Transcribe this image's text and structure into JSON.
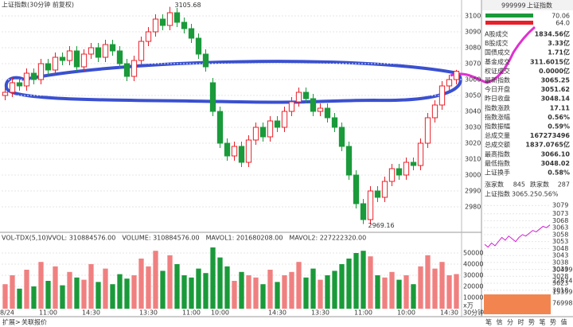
{
  "chart_data": {
    "type": "candlestick",
    "title": "上证指数(30分钟 前复权)",
    "period": "30分钟",
    "up_color": "#e8202a",
    "down_color": "#1a9a3a",
    "categories": [
      "08/24",
      null,
      null,
      null,
      null,
      null,
      "11:00",
      null,
      null,
      null,
      null,
      null,
      "14:30",
      null,
      null,
      null,
      null,
      null,
      null,
      null,
      "13:30",
      null,
      null,
      null,
      null,
      null,
      "11:00",
      null,
      null,
      null,
      "10:00",
      null,
      null,
      null,
      null,
      null,
      null,
      null,
      "14:30",
      null,
      null,
      null,
      null,
      null,
      "13:30",
      null,
      null,
      null,
      null,
      null,
      "11:00",
      null,
      null,
      null,
      null,
      null,
      "10:00",
      null,
      null,
      null,
      null,
      null,
      "14:30",
      null
    ],
    "open": [
      3050,
      3052,
      3058,
      3056,
      3064,
      3060,
      3070,
      3066,
      3074,
      3072,
      3078,
      3068,
      3076,
      3080,
      3074,
      3082,
      3078,
      3070,
      3062,
      3072,
      3084,
      3090,
      3098,
      3094,
      3102,
      3096,
      3092,
      3086,
      3076,
      3058,
      3040,
      3020,
      3012,
      3018,
      3008,
      3022,
      3030,
      3024,
      3034,
      3030,
      3040,
      3046,
      3052,
      3048,
      3040,
      3042,
      3036,
      3030,
      3018,
      3000,
      2982,
      2972,
      2990,
      2986,
      2996,
      3004,
      3000,
      3008,
      3006,
      3020,
      3036,
      3044,
      3056,
      3060
    ],
    "high": [
      3055,
      3061,
      3061,
      3067,
      3067,
      3073,
      3073,
      3077,
      3077,
      3081,
      3081,
      3079,
      3083,
      3083,
      3085,
      3085,
      3081,
      3073,
      3075,
      3087,
      3093,
      3101,
      3101,
      3105.68,
      3105,
      3099,
      3095,
      3089,
      3079,
      3061,
      3043,
      3023,
      3021,
      3021,
      3025,
      3033,
      3033,
      3037,
      3037,
      3043,
      3049,
      3055,
      3055,
      3051,
      3045,
      3045,
      3039,
      3033,
      3021,
      3003,
      2985,
      2993,
      2993,
      2999,
      3007,
      3007,
      3011,
      3011,
      3023,
      3039,
      3047,
      3059,
      3063,
      3066.1
    ],
    "low": [
      3047,
      3049,
      3053,
      3053,
      3057,
      3057,
      3063,
      3063,
      3069,
      3069,
      3065,
      3065,
      3073,
      3071,
      3071,
      3075,
      3067,
      3059,
      3059,
      3069,
      3081,
      3087,
      3091,
      3091,
      3093,
      3089,
      3083,
      3073,
      3065,
      3037,
      3017,
      3009,
      3009,
      3005,
      3005,
      3019,
      3021,
      3021,
      3027,
      3027,
      3037,
      3043,
      3045,
      3037,
      3037,
      3033,
      3027,
      3015,
      2997,
      2979,
      2969.16,
      2969,
      2983,
      2983,
      2993,
      2997,
      2997,
      3003,
      3003,
      3017,
      3033,
      3041,
      3053,
      3057
    ],
    "close": [
      3052,
      3058,
      3056,
      3064,
      3060,
      3070,
      3066,
      3074,
      3072,
      3078,
      3068,
      3076,
      3080,
      3074,
      3082,
      3078,
      3070,
      3062,
      3072,
      3084,
      3090,
      3098,
      3094,
      3102,
      3096,
      3092,
      3086,
      3076,
      3068,
      3040,
      3020,
      3012,
      3018,
      3008,
      3022,
      3030,
      3024,
      3034,
      3030,
      3040,
      3046,
      3052,
      3048,
      3040,
      3042,
      3036,
      3030,
      3018,
      3000,
      2982,
      2972,
      2990,
      2986,
      2996,
      3004,
      3000,
      3008,
      3006,
      3020,
      3036,
      3044,
      3056,
      3060,
      3065.25
    ],
    "ylim": [
      2966,
      3106
    ],
    "yticks": [
      3100,
      3090,
      3080,
      3070,
      3060,
      3050,
      3040,
      3030,
      3020,
      3010,
      3000,
      2990,
      2980
    ],
    "annotations": [
      {
        "text": "3105.68",
        "index": 23,
        "value": 3105.68
      },
      {
        "text": "2969.16",
        "index": 50,
        "value": 2969.16
      }
    ],
    "volume": {
      "title": "VOL-TDX(5,10)",
      "legend": [
        "VVOL: 310884576.00",
        "VOLUME: 310884576.00",
        "MAVOL1: 201680208.00",
        "MAVOL2: 227222320.00"
      ],
      "legend_colors": [
        "#333",
        "#d020d0",
        "#e8202a",
        "#888"
      ],
      "unit": "x万",
      "values": [
        22000,
        30000,
        18000,
        35000,
        20000,
        42000,
        25000,
        38000,
        21000,
        33000,
        28000,
        26000,
        40000,
        24000,
        36000,
        22000,
        31000,
        27000,
        30000,
        45000,
        38000,
        52000,
        34000,
        48000,
        40000,
        30000,
        28000,
        36000,
        32000,
        55000,
        46000,
        38000,
        25000,
        33000,
        30000,
        28000,
        22000,
        35000,
        24000,
        30000,
        33000,
        42000,
        28000,
        36000,
        26000,
        30000,
        34000,
        40000,
        45000,
        50000,
        52000,
        47000,
        30000,
        28000,
        33000,
        26000,
        30000,
        22000,
        38000,
        48000,
        36000,
        42000,
        30000,
        31088
      ],
      "ylim": [
        0,
        60000
      ],
      "yticks": [
        50000,
        40000,
        30000,
        20000,
        10000
      ]
    }
  },
  "quote_panel": {
    "code": "999999",
    "name": "上证指数",
    "top_values": [
      "70.06",
      "64.0"
    ],
    "rows": [
      {
        "label": "A股成交",
        "value": "1834.56亿",
        "color": "#e8202a"
      },
      {
        "label": "B股成交",
        "value": "3.33亿",
        "color": "#e8202a"
      },
      {
        "label": "国债成交",
        "value": "1.71亿",
        "color": "#e8202a"
      },
      {
        "label": "基金成交",
        "value": "311.6015亿",
        "color": "#e8202a"
      },
      {
        "label": "权证成交",
        "value": "0.0000亿",
        "color": "#e8202a"
      },
      {
        "label": "最新指数",
        "value": "3065.25",
        "color": "#e8202a"
      },
      {
        "label": "今日开盘",
        "value": "3051.62",
        "color": "#e8202a"
      },
      {
        "label": "昨日收盘",
        "value": "3048.14",
        "color": "#000"
      },
      {
        "label": "指数涨跌",
        "value": "17.11",
        "color": "#e8202a"
      },
      {
        "label": "指数涨幅",
        "value": "0.56%",
        "color": "#e8202a"
      },
      {
        "label": "指数振幅",
        "value": "0.59%",
        "color": "#000"
      },
      {
        "label": "总成交量",
        "value": "167273496",
        "color": "#e8202a"
      },
      {
        "label": "总成交额",
        "value": "1837.0765亿",
        "color": "#e8202a"
      },
      {
        "label": "最高指数",
        "value": "3066.10",
        "color": "#e8202a"
      },
      {
        "label": "最低指数",
        "value": "3048.02",
        "color": "#000"
      },
      {
        "label": "上证换手",
        "value": "0.58%",
        "color": "#000"
      }
    ],
    "advance_label": "涨家数",
    "advance": 845,
    "decline_label": "跌家数",
    "decline": 287,
    "mini_title": "上证指数",
    "mini_price": "3065.25",
    "mini_change": "0.56%",
    "mini_ticks": [
      3079,
      3073,
      3068,
      3063,
      3058,
      3053,
      3048,
      3043,
      3038,
      3033,
      3028,
      3023,
      3018
    ],
    "mini_ylim": [
      3015,
      3082
    ],
    "mini_line": [
      3051,
      3049,
      3052,
      3050,
      3053,
      3056,
      3054,
      3057,
      3055,
      3053,
      3056,
      3058,
      3057,
      3059,
      3061,
      3060,
      3062,
      3064,
      3063,
      3065
    ],
    "mini_vol_ticks": [
      "304990",
      "228742",
      "153996",
      "76998"
    ]
  },
  "footer": {
    "left_tabs": [
      "扩展>",
      "关联报价"
    ],
    "right_tabs": [
      "笔",
      "信",
      "分",
      "时",
      "势",
      "笔",
      "势",
      "值"
    ]
  }
}
